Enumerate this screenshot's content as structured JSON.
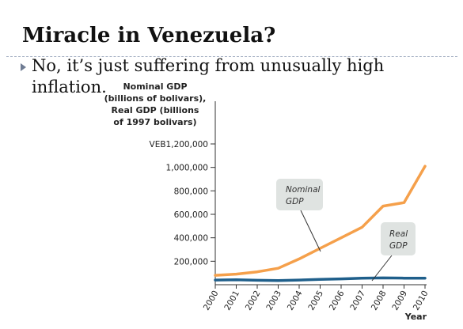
{
  "slide": {
    "title": "Miracle in Venezuela?",
    "bullet": "No, it’s just suffering from unusually high inflation."
  },
  "chart_data": {
    "type": "line",
    "ylabel_lines": [
      "Nominal GDP",
      "(billions of bolivars),",
      "Real GDP (billions",
      "of 1997 bolivars)"
    ],
    "xlabel": "Year",
    "x": [
      "2000",
      "2001",
      "2002",
      "2003",
      "2004",
      "2005",
      "2006",
      "2007",
      "2008",
      "2009",
      "2010"
    ],
    "ylim": [
      0,
      1200000
    ],
    "yticks": [
      200000,
      400000,
      600000,
      800000,
      1000000,
      1200000
    ],
    "ytick_labels": [
      "200,000",
      "400,000",
      "600,000",
      "800,000",
      "1,000,000",
      "VEB1,200,000"
    ],
    "series": [
      {
        "name": "Nominal GDP",
        "color": "#f5a04b",
        "values": [
          80000,
          90000,
          110000,
          140000,
          220000,
          310000,
          400000,
          490000,
          670000,
          700000,
          1010000
        ]
      },
      {
        "name": "Real GDP",
        "color": "#1f5f8b",
        "values": [
          40000,
          42000,
          38000,
          35000,
          40000,
          45000,
          50000,
          55000,
          58000,
          56000,
          55000
        ]
      }
    ],
    "annotations": [
      {
        "series": "Nominal GDP",
        "lines": [
          "Nominal",
          "GDP"
        ]
      },
      {
        "series": "Real GDP",
        "lines": [
          "Real",
          "GDP"
        ]
      }
    ],
    "grid": false,
    "legend": "none"
  }
}
